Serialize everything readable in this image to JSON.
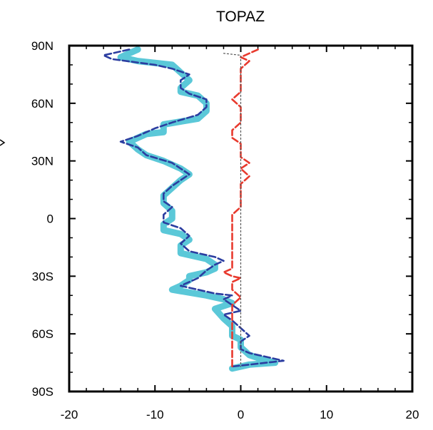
{
  "chart_data": {
    "type": "line",
    "title": "TOPAZ",
    "xlabel": "",
    "ylabel": "",
    "xlim": [
      -20,
      20
    ],
    "ylim": [
      -90,
      90
    ],
    "x_ticks": [
      {
        "value": -20,
        "label": "-20"
      },
      {
        "value": -10,
        "label": "-10"
      },
      {
        "value": 0,
        "label": "0"
      },
      {
        "value": 10,
        "label": "10"
      },
      {
        "value": 20,
        "label": "20"
      }
    ],
    "y_ticks": [
      {
        "value": 90,
        "label": "90N"
      },
      {
        "value": 60,
        "label": "60N"
      },
      {
        "value": 30,
        "label": "30N"
      },
      {
        "value": 0,
        "label": "0"
      },
      {
        "value": -30,
        "label": "30S"
      },
      {
        "value": -60,
        "label": "60S"
      },
      {
        "value": -90,
        "label": "90S"
      }
    ],
    "grid": false,
    "series": [
      {
        "color": "#5bc8d8",
        "style": "solid-thick",
        "points": [
          [
            -12,
            88
          ],
          [
            -14,
            84
          ],
          [
            -12,
            82
          ],
          [
            -8,
            80
          ],
          [
            -7,
            76
          ],
          [
            -6,
            72
          ],
          [
            -7,
            68
          ],
          [
            -7,
            66
          ],
          [
            -5,
            64
          ],
          [
            -4,
            60
          ],
          [
            -4,
            56
          ],
          [
            -5,
            52
          ],
          [
            -9,
            49
          ],
          [
            -9,
            45
          ],
          [
            -11,
            44
          ],
          [
            -13,
            40
          ],
          [
            -12,
            36
          ],
          [
            -11,
            33
          ],
          [
            -9,
            30
          ],
          [
            -7,
            26
          ],
          [
            -6,
            23
          ],
          [
            -7,
            20
          ],
          [
            -8,
            16
          ],
          [
            -9,
            12
          ],
          [
            -9,
            8
          ],
          [
            -8,
            4
          ],
          [
            -8,
            0
          ],
          [
            -9,
            -3
          ],
          [
            -9,
            -6
          ],
          [
            -7,
            -8
          ],
          [
            -6,
            -11
          ],
          [
            -7,
            -14
          ],
          [
            -7,
            -18
          ],
          [
            -4,
            -21
          ],
          [
            -3,
            -24
          ],
          [
            -3,
            -26
          ],
          [
            -4,
            -28
          ],
          [
            -6,
            -30
          ],
          [
            -6,
            -32
          ],
          [
            -7,
            -35
          ],
          [
            -8,
            -37
          ],
          [
            -4,
            -40
          ],
          [
            -2,
            -42
          ],
          [
            -1,
            -44
          ],
          [
            -3,
            -47
          ],
          [
            -2,
            -52
          ],
          [
            -1,
            -56
          ],
          [
            -1,
            -61
          ],
          [
            0,
            -63
          ],
          [
            0,
            -67
          ],
          [
            1,
            -71
          ],
          [
            3,
            -74
          ],
          [
            4,
            -75
          ],
          [
            1,
            -76
          ],
          [
            -1,
            -78
          ]
        ]
      },
      {
        "color": "#2b3da0",
        "style": "dashed",
        "points": [
          [
            -13,
            88
          ],
          [
            -15,
            86
          ],
          [
            -16,
            85
          ],
          [
            -15,
            83
          ],
          [
            -10,
            80
          ],
          [
            -8,
            78
          ],
          [
            -6,
            75
          ],
          [
            -7,
            72
          ],
          [
            -7,
            68
          ],
          [
            -6,
            65
          ],
          [
            -4,
            62
          ],
          [
            -4,
            58
          ],
          [
            -5,
            54
          ],
          [
            -8,
            50
          ],
          [
            -10,
            47
          ],
          [
            -12,
            43
          ],
          [
            -14,
            40
          ],
          [
            -12,
            37
          ],
          [
            -11,
            33
          ],
          [
            -8,
            29
          ],
          [
            -7,
            26
          ],
          [
            -6,
            23
          ],
          [
            -7,
            20
          ],
          [
            -8,
            17
          ],
          [
            -9,
            13
          ],
          [
            -9,
            9
          ],
          [
            -8,
            6
          ],
          [
            -9,
            2
          ],
          [
            -9,
            -2
          ],
          [
            -7,
            -5
          ],
          [
            -6,
            -9
          ],
          [
            -7,
            -13
          ],
          [
            -6,
            -17
          ],
          [
            -3,
            -20
          ],
          [
            -2,
            -22
          ],
          [
            -3,
            -24
          ],
          [
            -4,
            -27
          ],
          [
            -5,
            -31
          ],
          [
            -7,
            -35
          ],
          [
            -5,
            -37
          ],
          [
            -3,
            -39
          ],
          [
            -1,
            -40
          ],
          [
            -2,
            -42
          ],
          [
            -1,
            -45
          ],
          [
            0,
            -48
          ],
          [
            -2,
            -50
          ],
          [
            -1,
            -53
          ],
          [
            0,
            -57
          ],
          [
            1,
            -61
          ],
          [
            0,
            -64
          ],
          [
            0,
            -68
          ],
          [
            1,
            -70
          ],
          [
            2,
            -71
          ],
          [
            5,
            -74
          ],
          [
            3,
            -75
          ],
          [
            1,
            -76
          ],
          [
            -1,
            -77
          ]
        ]
      },
      {
        "color": "#e83a2e",
        "style": "dashed",
        "points": [
          [
            2,
            88
          ],
          [
            1,
            86
          ],
          [
            0,
            84
          ],
          [
            1,
            82
          ],
          [
            0,
            78
          ],
          [
            0,
            74
          ],
          [
            0,
            70
          ],
          [
            0,
            66
          ],
          [
            -1,
            62
          ],
          [
            0,
            58
          ],
          [
            0,
            54
          ],
          [
            0,
            50
          ],
          [
            -1,
            46
          ],
          [
            -1,
            42
          ],
          [
            0,
            39
          ],
          [
            0,
            36
          ],
          [
            0,
            32
          ],
          [
            1,
            29
          ],
          [
            0,
            26
          ],
          [
            1,
            22
          ],
          [
            0,
            18
          ],
          [
            0,
            14
          ],
          [
            0,
            10
          ],
          [
            0,
            6
          ],
          [
            -1,
            2
          ],
          [
            -1,
            -2
          ],
          [
            -1,
            -6
          ],
          [
            -1,
            -10
          ],
          [
            -1,
            -14
          ],
          [
            -1,
            -18
          ],
          [
            -1,
            -22
          ],
          [
            -1,
            -26
          ],
          [
            -2,
            -28
          ],
          [
            -1,
            -30
          ],
          [
            0,
            -31
          ],
          [
            -1,
            -33
          ],
          [
            -1,
            -37
          ],
          [
            0,
            -41
          ],
          [
            -1,
            -45
          ],
          [
            -1,
            -48
          ],
          [
            -1,
            -53
          ],
          [
            -1,
            -58
          ],
          [
            -1,
            -63
          ],
          [
            -1,
            -67
          ],
          [
            -1,
            -71
          ],
          [
            -1,
            -75
          ],
          [
            -1,
            -77
          ]
        ]
      },
      {
        "color": "#555555",
        "style": "dotted",
        "points": [
          [
            -2,
            86
          ],
          [
            0,
            85
          ],
          [
            0,
            84
          ],
          [
            0,
            80
          ],
          [
            0,
            60
          ],
          [
            0,
            30
          ],
          [
            0,
            0
          ],
          [
            0,
            -30
          ],
          [
            0,
            -60
          ],
          [
            0,
            -77
          ]
        ]
      }
    ]
  }
}
